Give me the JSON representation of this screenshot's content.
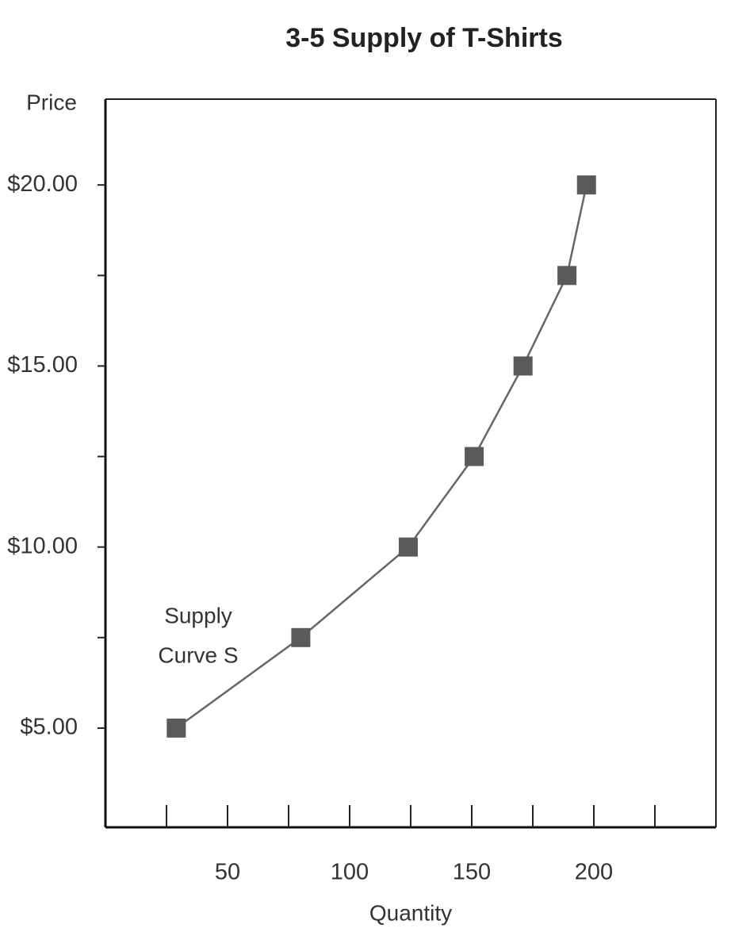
{
  "chart_data": {
    "type": "line",
    "title": "3-5 Supply of T-Shirts",
    "x_label": "Quantity",
    "y_label": "Price",
    "annotation": [
      "Supply",
      "Curve S"
    ],
    "series": [
      {
        "name": "Supply Curve S",
        "color": "#5a5a5a",
        "x": [
          29,
          80,
          124,
          151,
          171,
          189,
          197
        ],
        "values": [
          5,
          7.5,
          10,
          12.5,
          15,
          17.5,
          20
        ]
      }
    ],
    "xlim": [
      0,
      250
    ],
    "ylim": [
      2.26,
      22.37
    ],
    "xticks": [
      50,
      100,
      150,
      200
    ],
    "xminor_ticks": [
      25,
      75,
      125,
      175,
      225
    ],
    "yticks": [
      {
        "value": 5,
        "label": "$5.00"
      },
      {
        "value": 10,
        "label": "$10.00"
      },
      {
        "value": 15,
        "label": "$15.00"
      },
      {
        "value": 20,
        "label": "$20.00"
      }
    ],
    "yminor_ticks": [
      7.5,
      12.5,
      17.5
    ]
  }
}
